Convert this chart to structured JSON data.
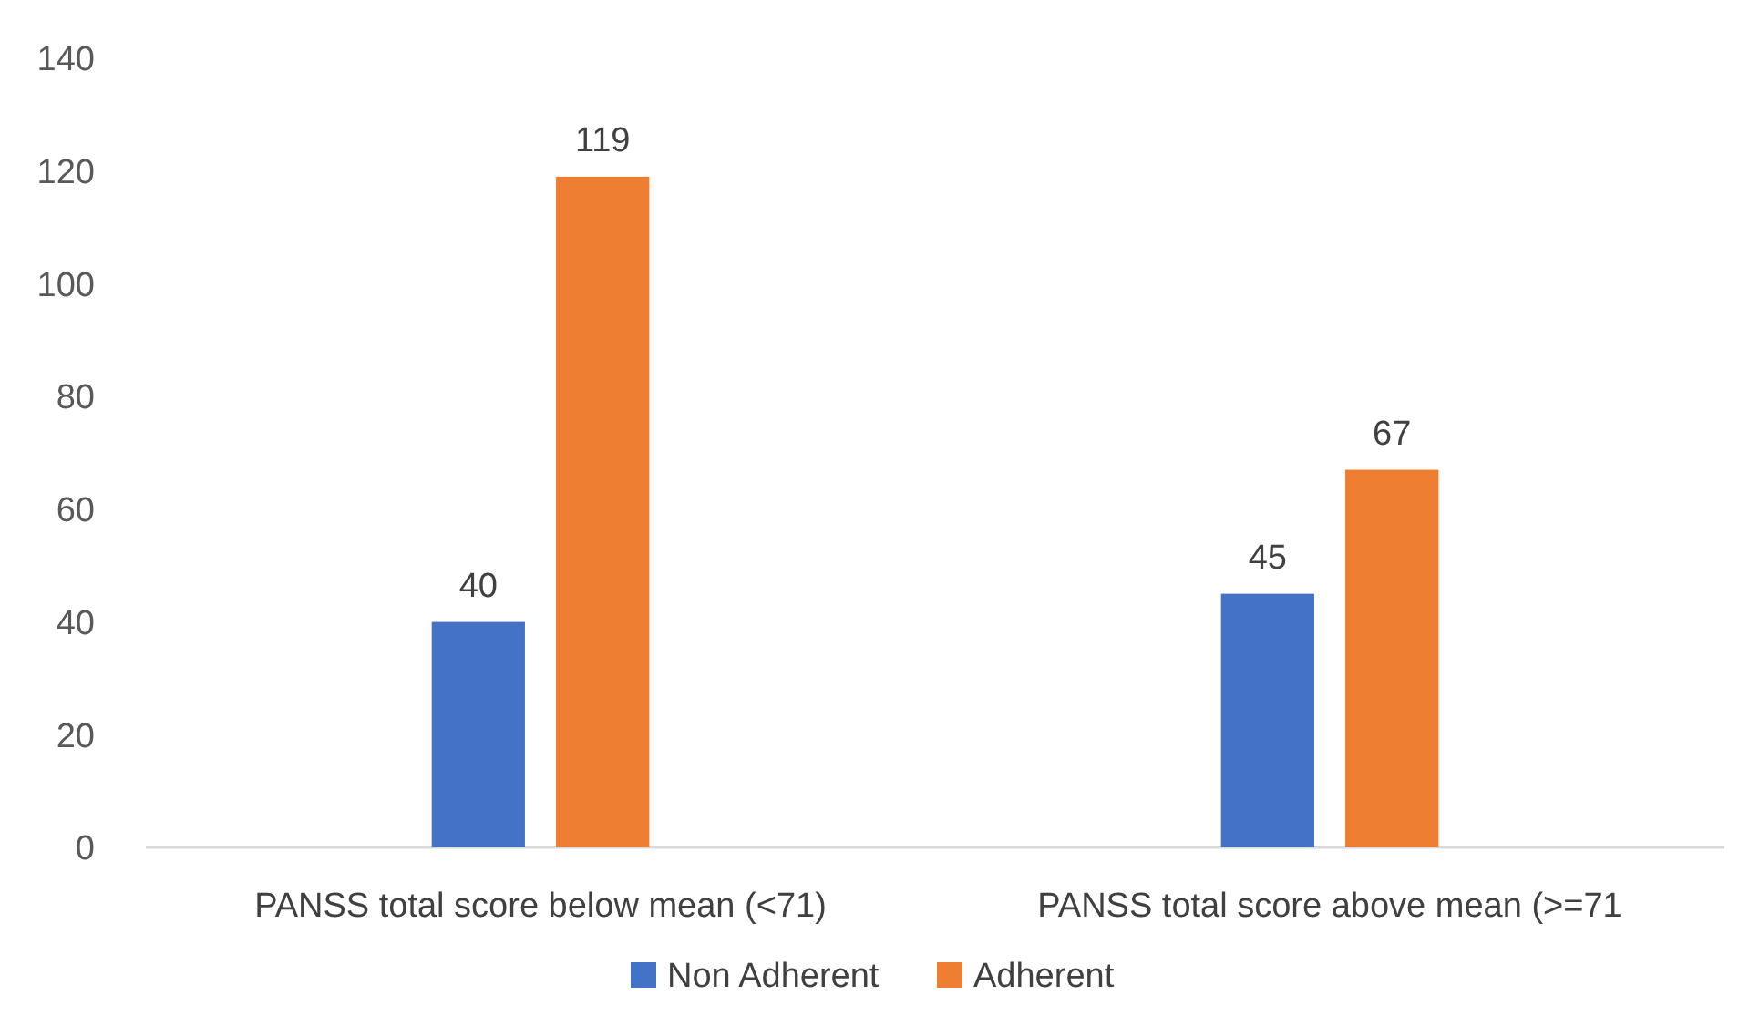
{
  "chart_data": {
    "type": "bar",
    "categories": [
      "PANSS total score below mean (<71)",
      "PANSS total score above mean (>=71"
    ],
    "series": [
      {
        "name": "Non Adherent",
        "color": "#4472c4",
        "values": [
          40,
          45
        ]
      },
      {
        "name": "Adherent",
        "color": "#ed7d31",
        "values": [
          119,
          67
        ]
      }
    ],
    "ylim": [
      0,
      140
    ],
    "yticks": [
      0,
      20,
      40,
      60,
      80,
      100,
      120,
      140
    ],
    "grid": false,
    "legend": "bottom",
    "data_labels": true
  }
}
